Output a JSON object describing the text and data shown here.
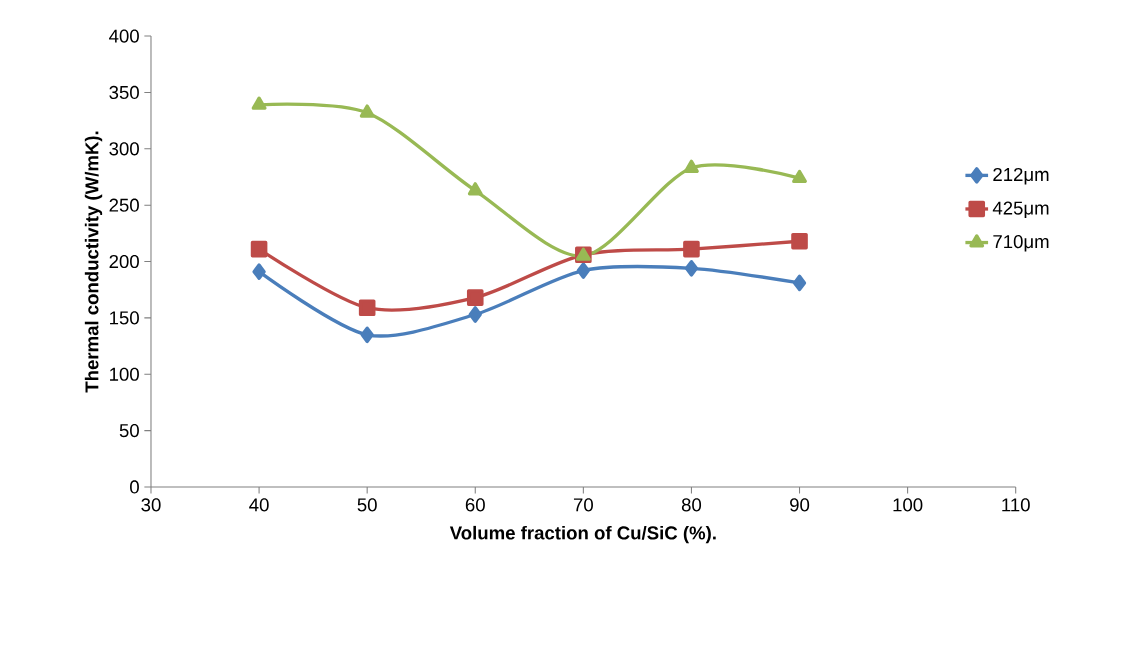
{
  "chart_data": {
    "type": "line",
    "xlabel": "Volume fraction of Cu/SiC (%).",
    "ylabel": "Thermal conductivity (W/mK).",
    "x": [
      40,
      50,
      60,
      70,
      80,
      90
    ],
    "series": [
      {
        "name": "212μm",
        "color": "#4a7ebb",
        "marker": "diamond",
        "values": [
          191,
          135,
          153,
          192,
          194,
          181
        ]
      },
      {
        "name": "425μm",
        "color": "#be4b48",
        "marker": "square",
        "values": [
          211,
          159,
          168,
          206,
          211,
          218
        ]
      },
      {
        "name": "710μm",
        "color": "#98b954",
        "marker": "triangle",
        "values": [
          339,
          332,
          263,
          205,
          283,
          274
        ]
      }
    ],
    "xlim": [
      30,
      110
    ],
    "xticks": [
      30,
      40,
      50,
      60,
      70,
      80,
      90,
      100,
      110
    ],
    "ylim": [
      0,
      400
    ],
    "yticks": [
      0,
      50,
      100,
      150,
      200,
      250,
      300,
      350,
      400
    ],
    "grid": false,
    "legend": "right",
    "line_style": "solid"
  }
}
